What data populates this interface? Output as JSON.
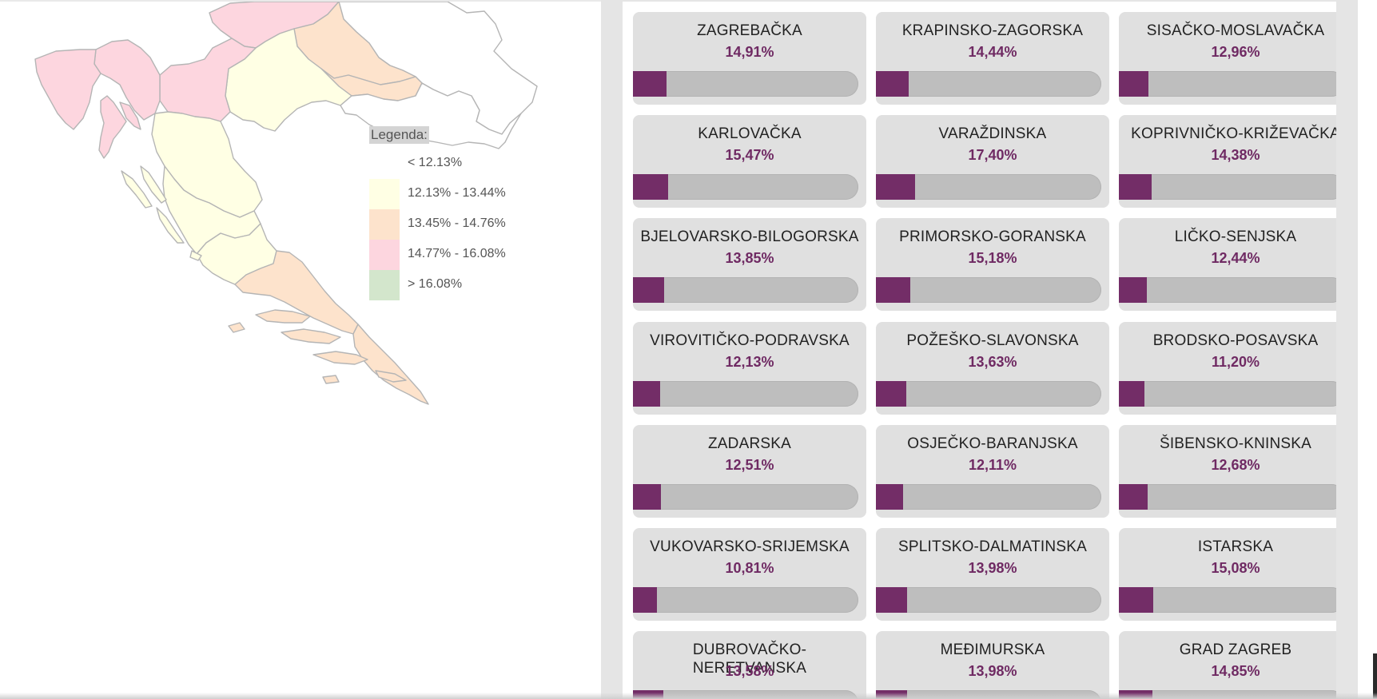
{
  "legend": {
    "title": "Legenda:",
    "items": [
      {
        "label": "< 12.13%",
        "color": "#ffffff"
      },
      {
        "label": "12.13% - 13.44%",
        "color": "#ffffe4"
      },
      {
        "label": "13.45% - 14.76%",
        "color": "#fde3cc"
      },
      {
        "label": "14.77% - 16.08%",
        "color": "#fdd6df"
      },
      {
        "label": "> 16.08%",
        "color": "#d3e6cc"
      }
    ]
  },
  "counties": [
    {
      "name": "ZAGREBAČKA",
      "value": "14,91%",
      "pct": 14.91
    },
    {
      "name": "KRAPINSKO-ZAGORSKA",
      "value": "14,44%",
      "pct": 14.44
    },
    {
      "name": "SISAČKO-MOSLAVAČKA",
      "value": "12,96%",
      "pct": 12.96
    },
    {
      "name": "KARLOVAČKA",
      "value": "15,47%",
      "pct": 15.47
    },
    {
      "name": "VARAŽDINSKA",
      "value": "17,40%",
      "pct": 17.4
    },
    {
      "name": "KOPRIVNIČKO-KRIŽEVAČKA",
      "value": "14,38%",
      "pct": 14.38
    },
    {
      "name": "BJELOVARSKO-BILOGORSKA",
      "value": "13,85%",
      "pct": 13.85
    },
    {
      "name": "PRIMORSKO-GORANSKA",
      "value": "15,18%",
      "pct": 15.18
    },
    {
      "name": "LIČKO-SENJSKA",
      "value": "12,44%",
      "pct": 12.44
    },
    {
      "name": "VIROVITIČKO-PODRAVSKA",
      "value": "12,13%",
      "pct": 12.13
    },
    {
      "name": "POŽEŠKO-SLAVONSKA",
      "value": "13,63%",
      "pct": 13.63
    },
    {
      "name": "BRODSKO-POSAVSKA",
      "value": "11,20%",
      "pct": 11.2
    },
    {
      "name": "ZADARSKA",
      "value": "12,51%",
      "pct": 12.51
    },
    {
      "name": "OSJEČKO-BARANJSKA",
      "value": "12,11%",
      "pct": 12.11
    },
    {
      "name": "ŠIBENSKO-KNINSKA",
      "value": "12,68%",
      "pct": 12.68
    },
    {
      "name": "VUKOVARSKO-SRIJEMSKA",
      "value": "10,81%",
      "pct": 10.81
    },
    {
      "name": "SPLITSKO-DALMATINSKA",
      "value": "13,98%",
      "pct": 13.98
    },
    {
      "name": "ISTARSKA",
      "value": "15,08%",
      "pct": 15.08
    },
    {
      "name": "DUBROVAČKO-NERETVANSKA",
      "value": "13,58%",
      "pct": 13.58
    },
    {
      "name": "MEĐIMURSKA",
      "value": "13,98%",
      "pct": 13.98
    },
    {
      "name": "GRAD ZAGREB",
      "value": "14,85%",
      "pct": 14.85
    }
  ]
}
